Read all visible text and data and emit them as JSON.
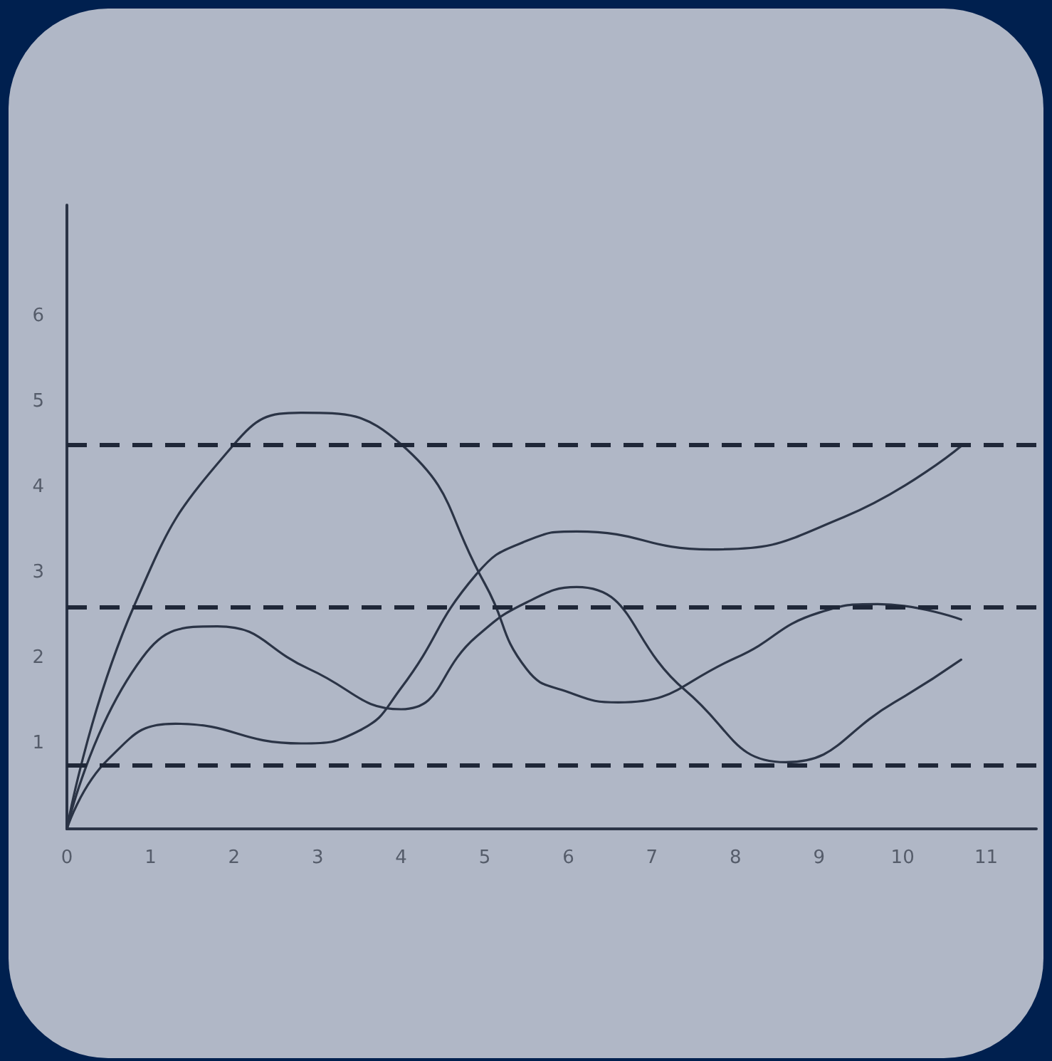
{
  "chart_data": {
    "type": "line",
    "marker": "none",
    "line_style": "solid",
    "xlim": [
      0,
      11.6
    ],
    "xticks": [
      0,
      1,
      2,
      3,
      4,
      5,
      6,
      7,
      8,
      9,
      10,
      11
    ],
    "ylim": [
      0,
      7.3
    ],
    "yticks": [
      1,
      2,
      3,
      4,
      5,
      6
    ],
    "series": [
      {
        "color": "#2b3446",
        "x": [
          0,
          0.8,
          2.0,
          2.8,
          4.0,
          5.0,
          5.5,
          6.0,
          6.6,
          8.0,
          9.0,
          9.7,
          10.7
        ],
        "values": [
          0,
          2.6,
          4.5,
          4.87,
          4.5,
          2.87,
          1.87,
          1.6,
          1.48,
          2.0,
          2.53,
          2.63,
          2.45
        ]
      },
      {
        "color": "#2b3446",
        "x": [
          0,
          0.9,
          1.8,
          2.9,
          4.0,
          4.9,
          5.5,
          6.1,
          7.4,
          8.6,
          9.9,
          10.7
        ],
        "values": [
          0,
          2.0,
          2.37,
          1.87,
          1.4,
          2.25,
          2.65,
          2.83,
          1.62,
          0.78,
          1.48,
          1.98
        ]
      },
      {
        "color": "#2b3446",
        "x": [
          0,
          0.5,
          1.3,
          2.8,
          3.5,
          4.0,
          4.9,
          5.5,
          6.1,
          7.7,
          9.3,
          10.7
        ],
        "values": [
          0,
          0.82,
          1.23,
          1.0,
          1.15,
          1.65,
          2.98,
          3.37,
          3.48,
          3.27,
          3.65,
          4.48
        ]
      }
    ],
    "ref_lines": [
      {
        "axis": "y",
        "value": 4.5,
        "color": "#1f2738",
        "line_style": "dashed"
      },
      {
        "axis": "y",
        "value": 2.6,
        "color": "#1f2738",
        "line_style": "dashed"
      },
      {
        "axis": "y",
        "value": 0.75,
        "color": "#1f2738",
        "line_style": "dashed"
      }
    ]
  }
}
